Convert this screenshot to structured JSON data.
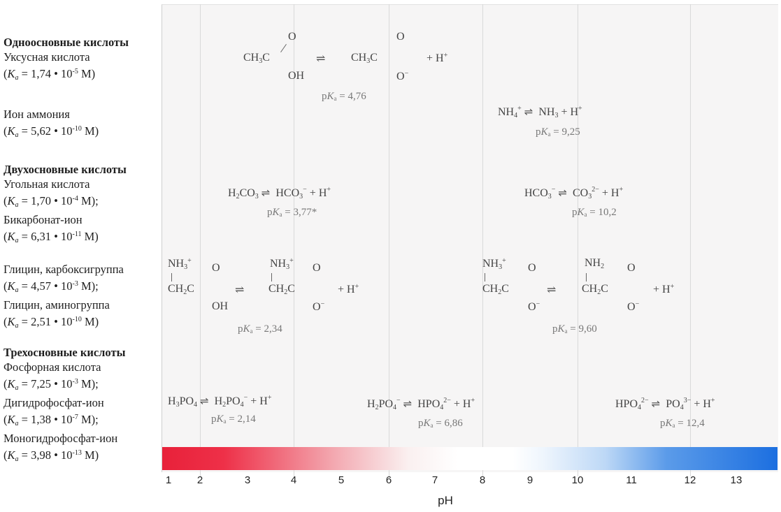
{
  "labels": {
    "monoprotic_header": "Одноосновные кислоты",
    "acetic_name": "Уксусная кислота",
    "acetic_ka": "1,74 • 10",
    "acetic_exp": "-5",
    "ammonium_name": "Ион аммония",
    "ammonium_ka": "5,62 • 10",
    "ammonium_exp": "-10",
    "diprotic_header": "Двухосновные кислоты",
    "carbonic_name": "Угольная кислота",
    "carbonic_ka": "1,70 • 10",
    "carbonic_exp": "-4",
    "bicarbonate_name": "Бикарбонат-ион",
    "bicarbonate_ka": "6,31 • 10",
    "bicarbonate_exp": "-11",
    "glycine_carboxyl_name": "Глицин, карбоксигруппа",
    "glycine_carboxyl_ka": "4,57 • 10",
    "glycine_carboxyl_exp": "-3",
    "glycine_amino_name": "Глицин, аминогруппа",
    "glycine_amino_ka": "2,51 • 10",
    "glycine_amino_exp": "-10",
    "triprotic_header": "Трехосновные кислоты",
    "phosphoric_name": "Фосфорная кислота",
    "phosphoric_ka": "7,25 • 10",
    "phosphoric_exp": "-3",
    "dihydrogen_name": "Дигидрофосфат-ион",
    "dihydrogen_ka": "1,38 • 10",
    "dihydrogen_exp": "-7",
    "monohydrogen_name": "Моногидрофосфат-ион",
    "monohydrogen_ka": "3,98 • 10",
    "monohydrogen_exp": "-13",
    "ka_symbol": "K",
    "ka_sub": "a",
    "unit": "M"
  },
  "pka": {
    "acetic": "4,76",
    "ammonium": "9,25",
    "carbonic": "3,77*",
    "bicarbonate": "10,2",
    "glycine_carboxyl": "2,34",
    "glycine_amino": "9,60",
    "phosphoric": "2,14",
    "dihydrogen": "6,86",
    "monohydrogen": "12,4",
    "prefix": "p",
    "symbol": "K",
    "sub": "a"
  },
  "ph_axis": {
    "label": "pH",
    "ticks": [
      "1",
      "2",
      "3",
      "4",
      "5",
      "6",
      "7",
      "8",
      "9",
      "10",
      "11",
      "12",
      "13"
    ]
  },
  "colors": {
    "acid": "#e8213a",
    "base": "#1c6fe0",
    "neutral": "#ffffff"
  }
}
